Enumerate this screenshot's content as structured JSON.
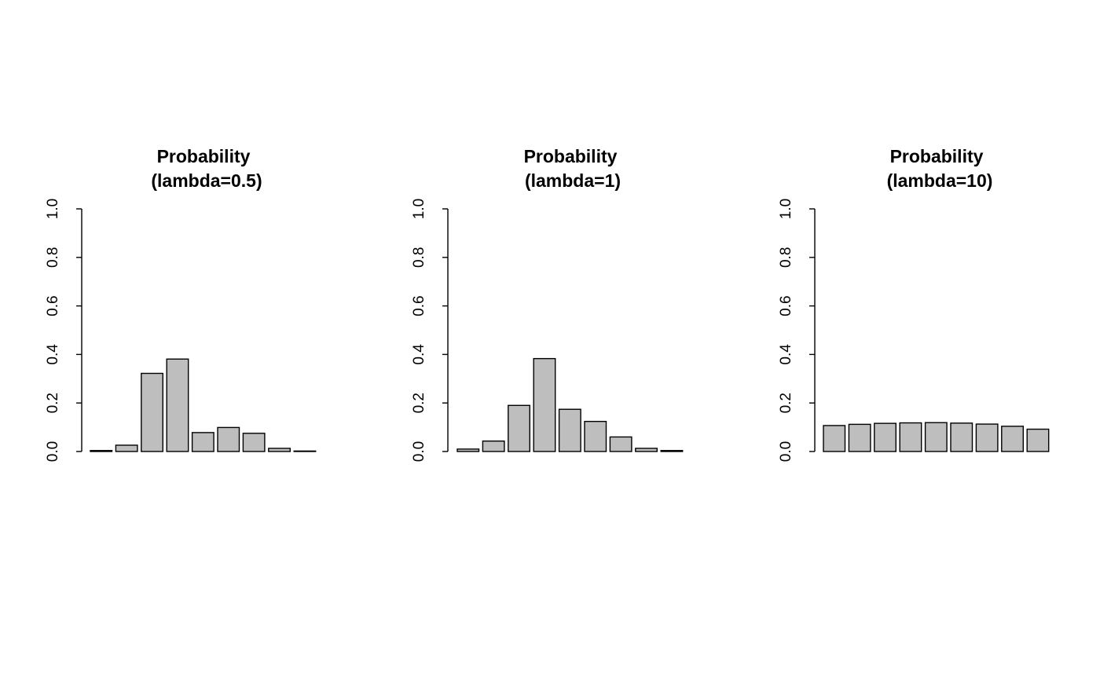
{
  "chart_data": [
    {
      "type": "bar",
      "title_line1": "Probability",
      "title_line2": "(lambda=0.5)",
      "xlabel": "",
      "ylabel": "",
      "ylim": [
        0,
        1
      ],
      "yticks": [
        "0.0",
        "0.2",
        "0.4",
        "0.6",
        "0.8",
        "1.0"
      ],
      "values": [
        0.004,
        0.026,
        0.322,
        0.381,
        0.078,
        0.099,
        0.075,
        0.013,
        0.002
      ],
      "bar_color": "#bebebe"
    },
    {
      "type": "bar",
      "title_line1": "Probability",
      "title_line2": "(lambda=1)",
      "xlabel": "",
      "ylabel": "",
      "ylim": [
        0,
        1
      ],
      "yticks": [
        "0.0",
        "0.2",
        "0.4",
        "0.6",
        "0.8",
        "1.0"
      ],
      "values": [
        0.01,
        0.043,
        0.19,
        0.383,
        0.174,
        0.124,
        0.06,
        0.013,
        0.004
      ],
      "bar_color": "#bebebe"
    },
    {
      "type": "bar",
      "title_line1": "Probability",
      "title_line2": "(lambda=10)",
      "xlabel": "",
      "ylabel": "",
      "ylim": [
        0,
        1
      ],
      "yticks": [
        "0.0",
        "0.2",
        "0.4",
        "0.6",
        "0.8",
        "1.0"
      ],
      "values": [
        0.107,
        0.112,
        0.116,
        0.118,
        0.119,
        0.117,
        0.113,
        0.104,
        0.092
      ],
      "bar_color": "#bebebe"
    }
  ]
}
